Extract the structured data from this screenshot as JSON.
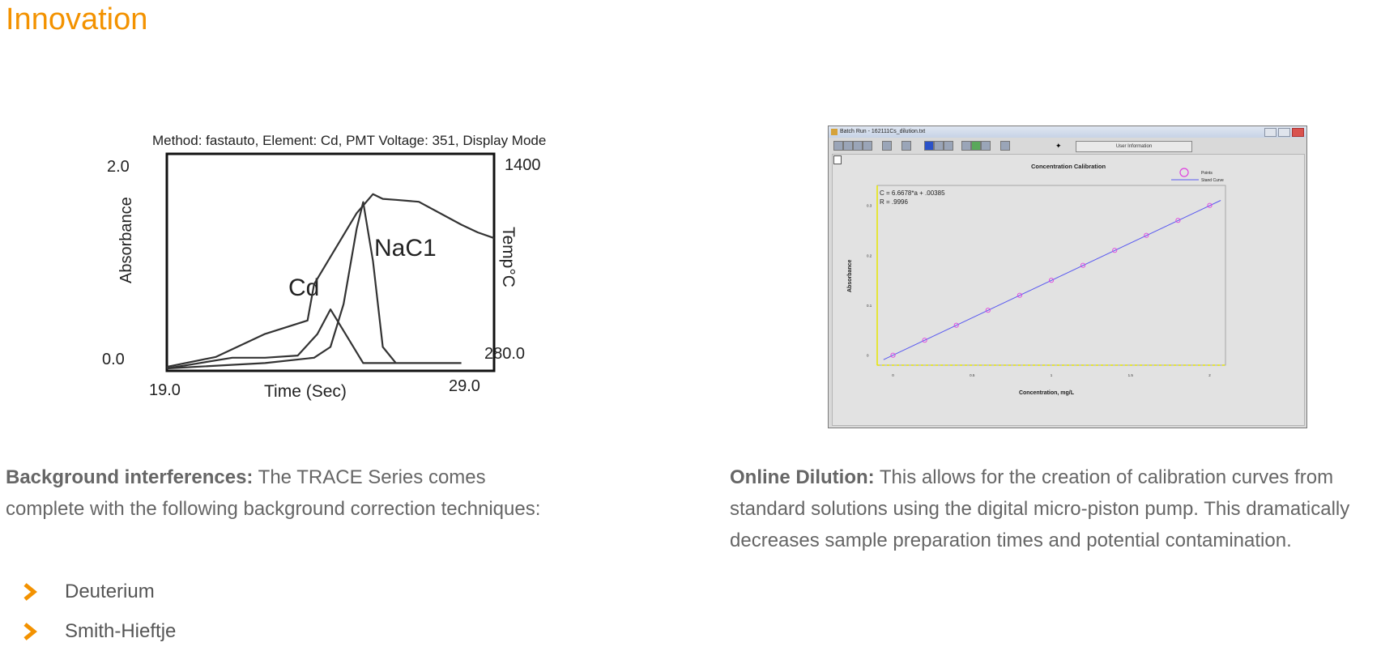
{
  "page": {
    "title": "Innovation"
  },
  "left_figure": {
    "header": "Method: fastauto, Element: Cd, PMT Voltage: 351, Display Mode",
    "y_left_label": "Absorbance",
    "y_right_label": "Temp°C",
    "x_label": "Time (Sec)",
    "y_left_ticks": [
      "2.0",
      "0.0"
    ],
    "y_right_ticks": [
      "1400",
      "280.0"
    ],
    "x_ticks": [
      "19.0",
      "29.0"
    ],
    "peak_labels": [
      "Cd",
      "NaC1"
    ]
  },
  "right_figure": {
    "window_title": "Batch Run - 162111Cs_dilution.txt",
    "user_info_button": "User Information",
    "plot_title": "Concentration Calibration",
    "equation_line1": "C = 6.6678*a + .00385",
    "equation_line2": "R = .9996",
    "y_label": "Absorbance",
    "x_label": "Concentration, mg/L",
    "legend_points": "Points",
    "legend_curve": "Stand Curve",
    "y_ticks": [
      "0.3",
      "0.2",
      "0.1",
      "0"
    ],
    "x_ticks": [
      "0",
      "0.5",
      "1",
      "1.5",
      "2"
    ]
  },
  "left_text": {
    "bold": "Background interferences:",
    "body": " The TRACE Series comes complete with the following background correction techniques:"
  },
  "right_text": {
    "bold": "Online Dilution:",
    "body": " This allows for the creation of calibration curves from standard solutions using the digital micro-piston pump. This dramatically decreases sample preparation times and potential contamination."
  },
  "bullets": [
    "Deuterium",
    "Smith-Hieftje"
  ],
  "colors": {
    "accent": "#f39200",
    "text": "#666666",
    "calibration_line": "#5a5af0",
    "calibration_points": "#e040e0"
  },
  "chart_data": [
    {
      "type": "line",
      "title": "Method: fastauto, Element: Cd, PMT Voltage: 351, Display Mode",
      "xlabel": "Time (Sec)",
      "ylabel": "Absorbance",
      "y2label": "Temp°C",
      "xlim": [
        19.0,
        29.0
      ],
      "ylim": [
        0.0,
        2.0
      ],
      "y2lim": [
        280.0,
        1400
      ],
      "series": [
        {
          "name": "Cd",
          "x": [
            19.0,
            20.0,
            21.0,
            22.0,
            23.0,
            23.6,
            24.0,
            24.4,
            25.0,
            26.0
          ],
          "values": [
            0.0,
            0.05,
            0.1,
            0.1,
            0.12,
            0.32,
            0.55,
            0.35,
            0.05,
            0.05
          ]
        },
        {
          "name": "NaC1",
          "x": [
            19.0,
            22.0,
            23.5,
            24.0,
            24.4,
            24.8,
            25.0,
            25.3,
            25.6,
            26.0,
            28.0
          ],
          "values": [
            0.0,
            0.05,
            0.1,
            0.2,
            0.6,
            1.3,
            1.55,
            1.0,
            0.2,
            0.05,
            0.05
          ]
        },
        {
          "name": "Temp°C",
          "axis": "y2",
          "x": [
            19.0,
            20.5,
            22.0,
            23.3,
            23.5,
            24.8,
            25.3,
            25.6,
            26.0,
            26.7,
            28.0,
            28.5,
            29.0
          ],
          "values": [
            288,
            340,
            460,
            530,
            720,
            1090,
            1190,
            1165,
            1160,
            1150,
            1030,
            990,
            960
          ]
        }
      ]
    },
    {
      "type": "scatter",
      "title": "Concentration Calibration",
      "xlabel": "Concentration, mg/L",
      "ylabel": "Absorbance",
      "xlim": [
        -0.1,
        2.1
      ],
      "ylim": [
        -0.02,
        0.34
      ],
      "annotation": [
        "C = 6.6678*a + .00385",
        "R = .9996"
      ],
      "series": [
        {
          "name": "Points",
          "x": [
            0.0,
            0.2,
            0.4,
            0.6,
            0.8,
            1.0,
            1.2,
            1.4,
            1.6,
            1.8,
            2.0
          ],
          "values": [
            0.0,
            0.03,
            0.06,
            0.09,
            0.12,
            0.15,
            0.18,
            0.21,
            0.24,
            0.27,
            0.3
          ]
        },
        {
          "name": "Stand Curve",
          "x": [
            -0.06,
            2.07
          ],
          "values": [
            -0.009,
            0.31
          ]
        }
      ]
    }
  ]
}
